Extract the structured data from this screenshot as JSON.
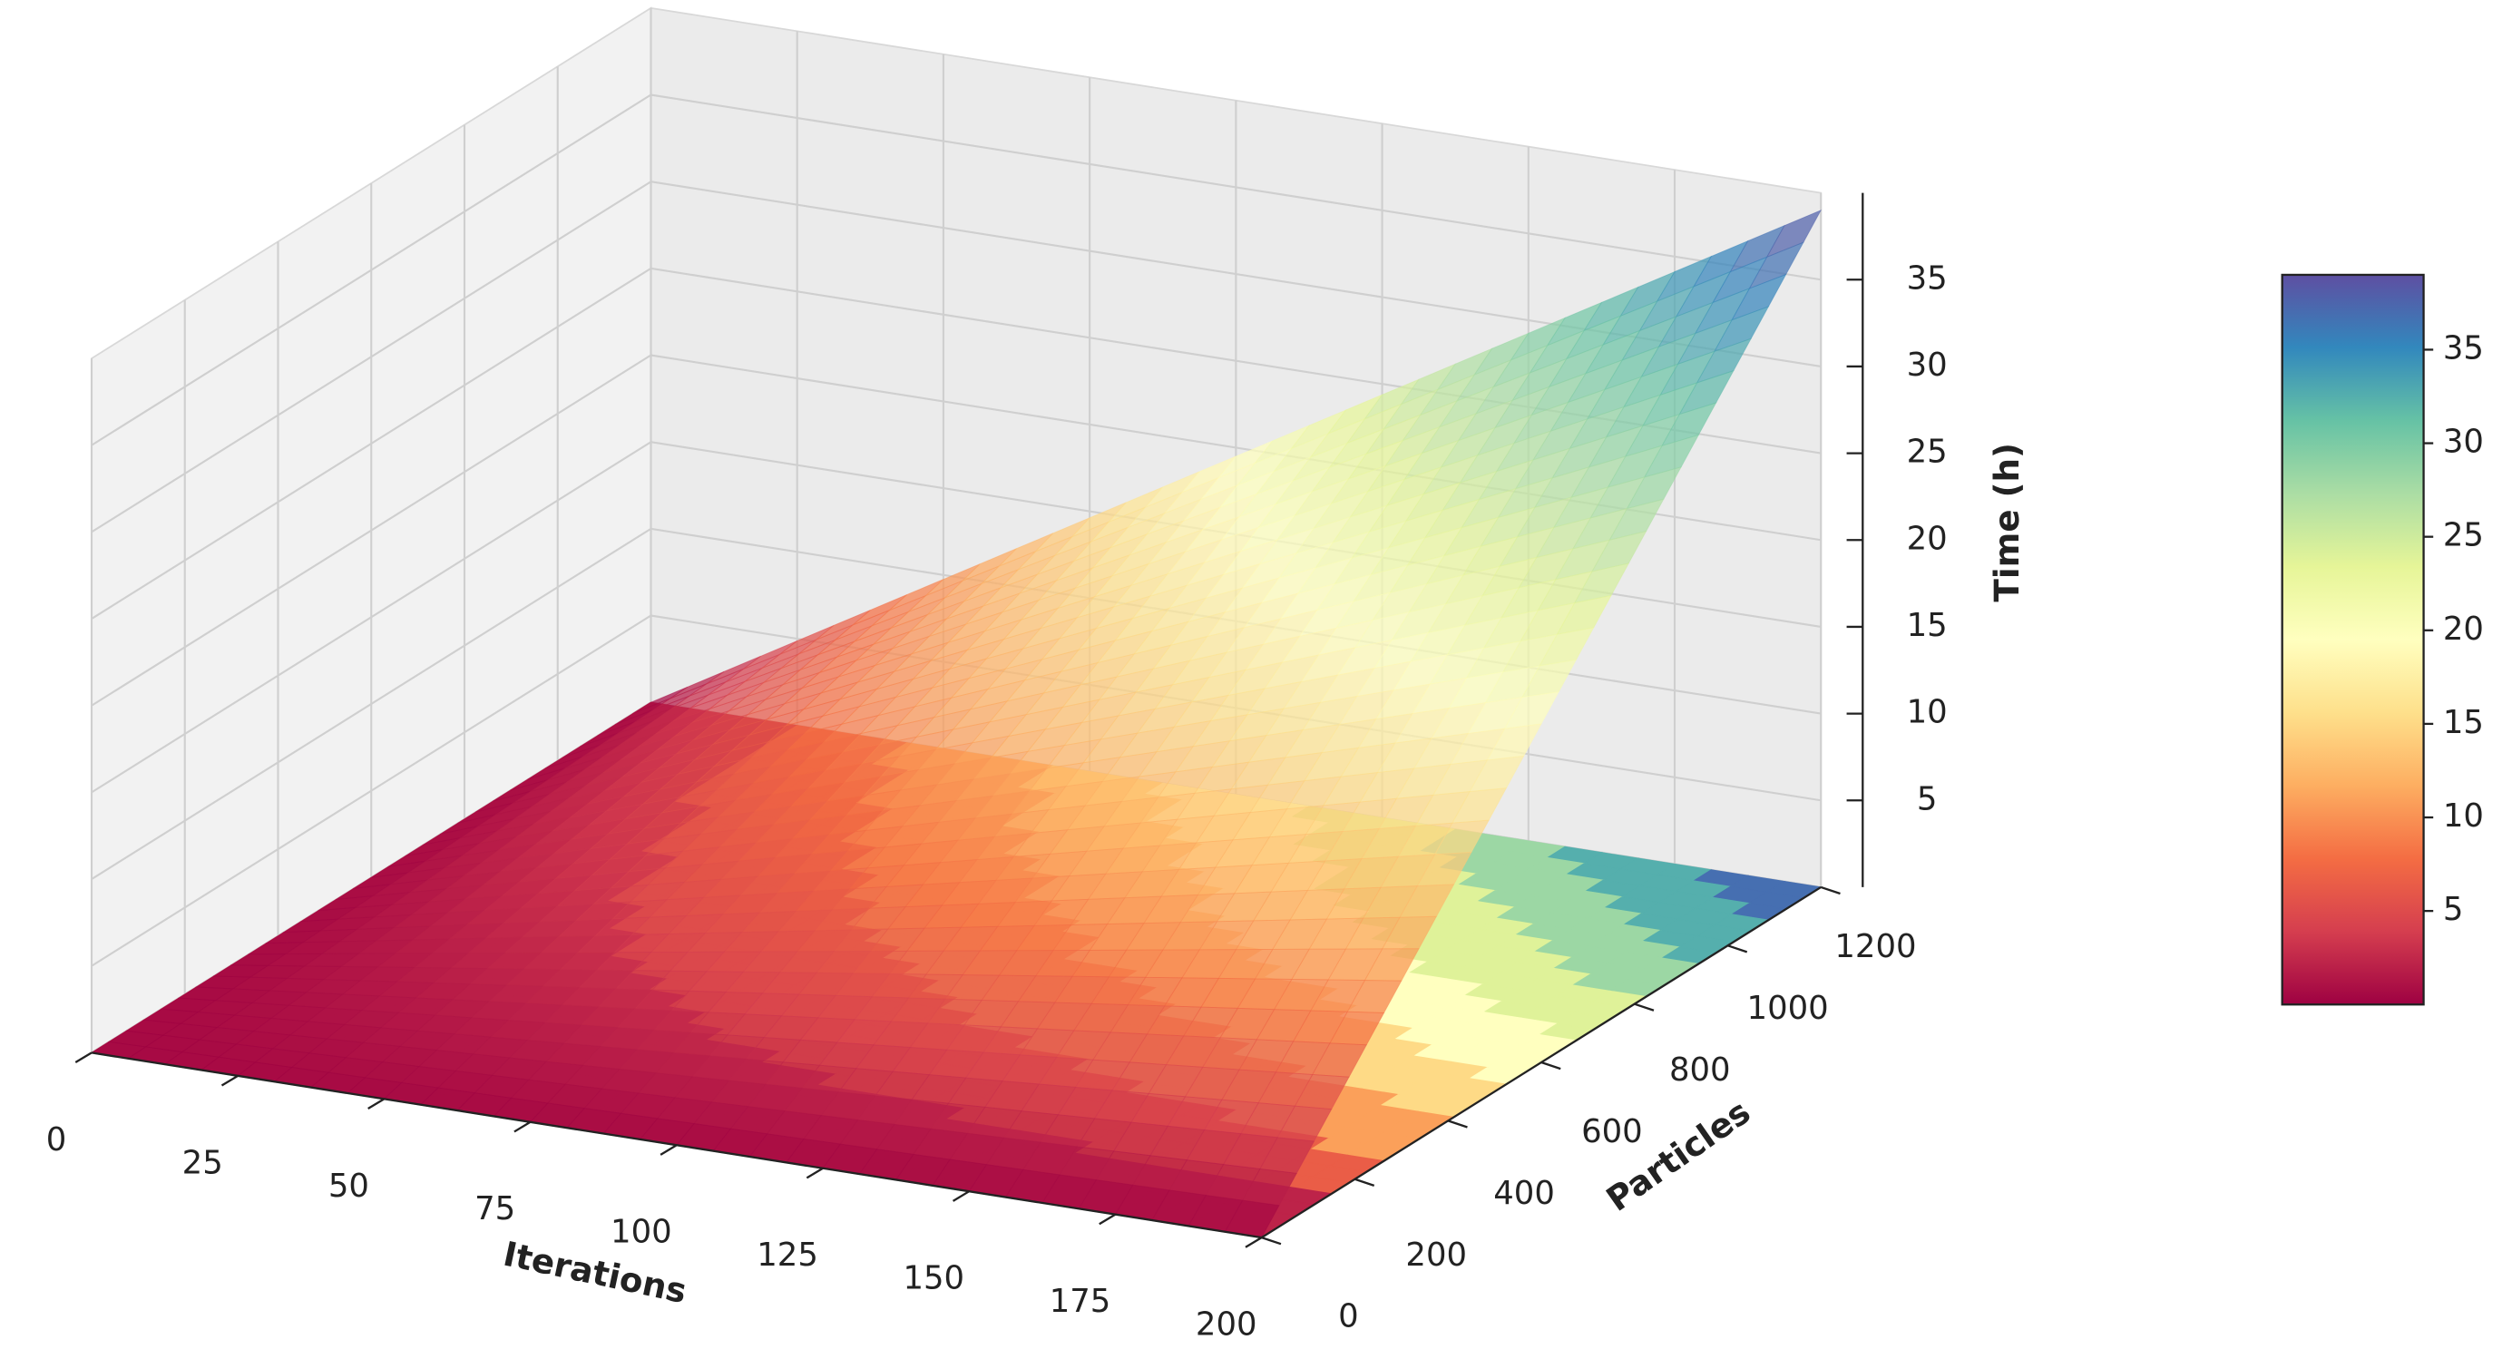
{
  "chart_data": {
    "type": "surface3d",
    "xlabel": "Iterations",
    "ylabel": "Particles",
    "zlabel": "Time (h)",
    "x": [
      0,
      50,
      100,
      150,
      200
    ],
    "y": [
      0,
      300,
      600,
      900,
      1200
    ],
    "z": [
      [
        0,
        0,
        0,
        0,
        0
      ],
      [
        0,
        2.44,
        4.88,
        7.31,
        9.75
      ],
      [
        0,
        4.88,
        9.75,
        14.63,
        19.5
      ],
      [
        0,
        7.31,
        14.63,
        21.94,
        29.25
      ],
      [
        0,
        9.75,
        19.5,
        29.25,
        39
      ]
    ],
    "xlim": [
      0,
      200
    ],
    "ylim": [
      0,
      1200
    ],
    "zlim": [
      0,
      40
    ],
    "xticks": [
      0,
      25,
      50,
      75,
      100,
      125,
      150,
      175,
      200
    ],
    "yticks": [
      0,
      200,
      400,
      600,
      800,
      1000,
      1200
    ],
    "zticks": [
      5,
      10,
      15,
      20,
      25,
      30,
      35
    ],
    "colormap": [
      "#9e0142",
      "#d53e4f",
      "#f46d43",
      "#fdae61",
      "#fee08b",
      "#ffffbf",
      "#e6f598",
      "#abdda4",
      "#66c2a5",
      "#3288bd",
      "#5e4fa2"
    ],
    "clim": [
      0,
      39
    ],
    "colorbar_ticks": [
      5,
      10,
      15,
      20,
      25,
      30,
      35
    ],
    "grid": true
  }
}
